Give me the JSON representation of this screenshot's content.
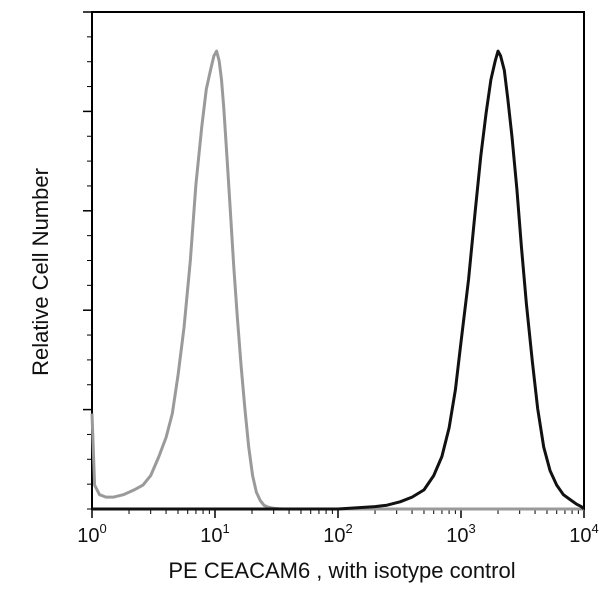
{
  "chart_data": {
    "type": "line",
    "title": "",
    "xlabel": "PE CEACAM6 , with isotype control",
    "ylabel": "Relative Cell Number",
    "x_scale": "log",
    "xlim": [
      1,
      10000
    ],
    "ylim": [
      0,
      100
    ],
    "x_ticks": [
      {
        "base": "10",
        "exp": "0",
        "value": 1
      },
      {
        "base": "10",
        "exp": "1",
        "value": 10
      },
      {
        "base": "10",
        "exp": "2",
        "value": 100
      },
      {
        "base": "10",
        "exp": "3",
        "value": 1000
      },
      {
        "base": "10",
        "exp": "4",
        "value": 10000
      }
    ],
    "grid": false,
    "legend": "none",
    "series": [
      {
        "role": "isotype-control",
        "color": "#9a9a9a",
        "x": [
          1.0,
          1.05,
          1.15,
          1.3,
          1.5,
          1.8,
          2.2,
          2.6,
          3.0,
          3.5,
          4.0,
          4.5,
          5.0,
          5.6,
          6.3,
          7.0,
          7.8,
          8.5,
          9.2,
          9.8,
          10.3,
          10.8,
          11.3,
          11.8,
          12.5,
          13.3,
          14.2,
          15.2,
          16.3,
          17.5,
          18.8,
          20.2,
          21.7,
          23.3,
          25.0,
          27.0,
          29.0,
          31.0,
          33.0,
          36.0,
          40.0,
          100.0,
          1000.0,
          10000.0
        ],
        "y": [
          20,
          5,
          3,
          2.5,
          2.5,
          3,
          4,
          5,
          7,
          11,
          15,
          20,
          28,
          38,
          52,
          68,
          80,
          88,
          92,
          95,
          96,
          94,
          90,
          84,
          74,
          63,
          51,
          40,
          30,
          21,
          13,
          7,
          3.5,
          1.8,
          0.8,
          0.4,
          0.2,
          0.1,
          0.05,
          0,
          0,
          0,
          0,
          0
        ]
      },
      {
        "role": "pe-ceacam6",
        "color": "#111111",
        "x": [
          1,
          100,
          200,
          250,
          320,
          400,
          500,
          600,
          700,
          800,
          900,
          1000,
          1150,
          1300,
          1450,
          1600,
          1750,
          1900,
          2000,
          2100,
          2250,
          2400,
          2600,
          2850,
          3100,
          3400,
          3800,
          4200,
          4700,
          5300,
          6000,
          6800,
          7700,
          8700,
          9500,
          10000
        ],
        "y": [
          0,
          0,
          0.5,
          0.8,
          1.5,
          2.5,
          4,
          7,
          11,
          17,
          25,
          35,
          48,
          62,
          74,
          83,
          90,
          94,
          96,
          95,
          92,
          86,
          78,
          67,
          55,
          43,
          31,
          21,
          13,
          8,
          5,
          3,
          2,
          1,
          0.5,
          0
        ]
      }
    ]
  }
}
